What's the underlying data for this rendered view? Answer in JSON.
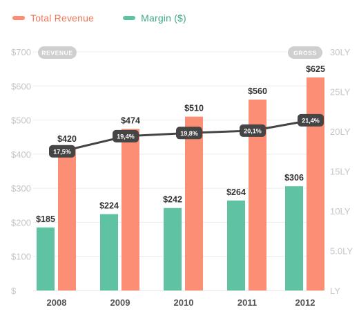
{
  "colors": {
    "revenue": "#fb8e74",
    "margin": "#5fc3a3",
    "line": "#454545",
    "axis_text": "#c6c6c6",
    "grid": "#ececec",
    "pill_bg": "#cfcfcf",
    "revenue_text": "#f0775b",
    "margin_text": "#3ea987"
  },
  "legend": [
    {
      "label": "Total Revenue",
      "color_key": "revenue"
    },
    {
      "label": "Margin ($)",
      "color_key": "margin"
    }
  ],
  "chart_data": {
    "type": "bar",
    "categories": [
      "2008",
      "2009",
      "2010",
      "2011",
      "2012"
    ],
    "series": [
      {
        "name": "Margin ($)",
        "values": [
          185,
          224,
          242,
          264,
          306
        ],
        "labels": [
          "$185",
          "$224",
          "$242",
          "$264",
          "$306"
        ]
      },
      {
        "name": "Total Revenue",
        "values": [
          420,
          474,
          510,
          560,
          625
        ],
        "labels": [
          "$420",
          "$474",
          "$510",
          "$560",
          "$625"
        ]
      }
    ],
    "line_series": {
      "values": [
        17.5,
        19.4,
        19.8,
        20.1,
        21.4
      ],
      "labels": [
        "17,5%",
        "19,4%",
        "19,8%",
        "20,1%",
        "21,4%"
      ],
      "axis": "right"
    },
    "y_left": {
      "badge": "REVENUE",
      "ylim": [
        0,
        700
      ],
      "ticks": [
        0,
        100,
        200,
        300,
        400,
        500,
        600,
        700
      ],
      "tick_labels": [
        "$",
        "$100",
        "$200",
        "$300",
        "$400",
        "$500",
        "$600",
        "$700"
      ]
    },
    "y_right": {
      "badge": "GROSS",
      "tick_labels": [
        "LY",
        "5.0LY",
        "10LY",
        "15LY",
        "20LY",
        "25LY",
        "30LY"
      ]
    },
    "grid": true
  }
}
